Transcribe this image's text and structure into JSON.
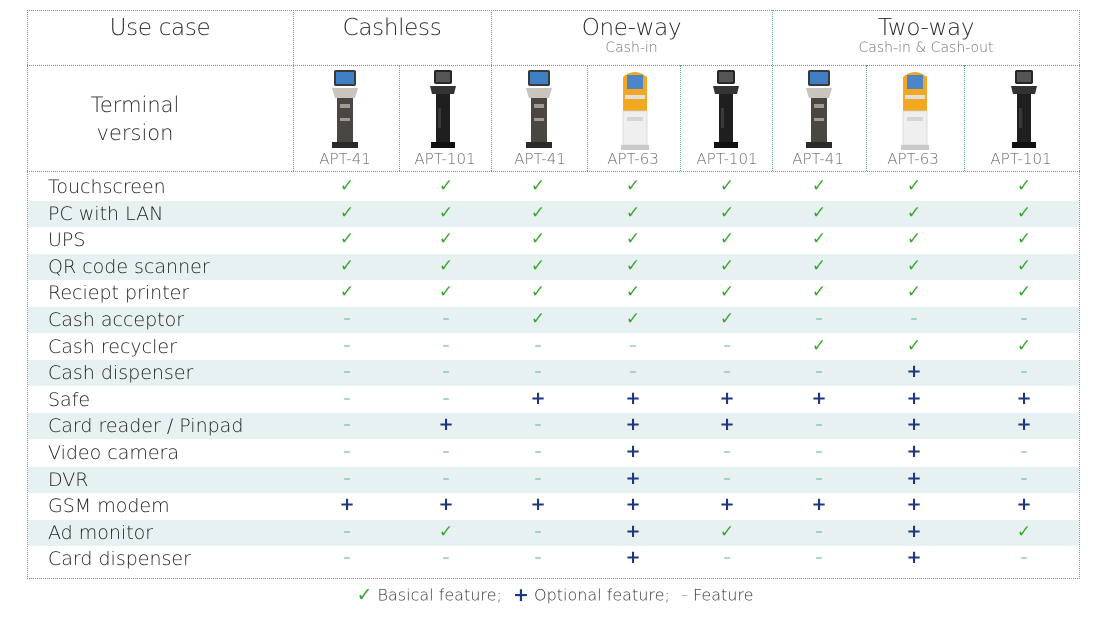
{
  "header": {
    "use_case_label": "Use case",
    "groups": [
      {
        "title": "Cashless",
        "subtitle": ""
      },
      {
        "title": "One-way",
        "subtitle": "Cash-in"
      },
      {
        "title": "Two-way",
        "subtitle": "Cash-in & Cash-out"
      }
    ],
    "terminal_label_line1": "Terminal",
    "terminal_label_line2": "version",
    "models": [
      "APT-41",
      "APT-101",
      "APT-41",
      "APT-63",
      "APT-101",
      "APT-41",
      "APT-63",
      "APT-101"
    ]
  },
  "symbols": {
    "basic": "✓",
    "optional": "+",
    "none": "–"
  },
  "features": [
    {
      "name": "Touchscreen",
      "values": [
        "basic",
        "basic",
        "basic",
        "basic",
        "basic",
        "basic",
        "basic",
        "basic"
      ]
    },
    {
      "name": "PC with LAN",
      "values": [
        "basic",
        "basic",
        "basic",
        "basic",
        "basic",
        "basic",
        "basic",
        "basic"
      ]
    },
    {
      "name": "UPS",
      "values": [
        "basic",
        "basic",
        "basic",
        "basic",
        "basic",
        "basic",
        "basic",
        "basic"
      ]
    },
    {
      "name": "QR code scanner",
      "values": [
        "basic",
        "basic",
        "basic",
        "basic",
        "basic",
        "basic",
        "basic",
        "basic"
      ]
    },
    {
      "name": "Reciept printer",
      "values": [
        "basic",
        "basic",
        "basic",
        "basic",
        "basic",
        "basic",
        "basic",
        "basic"
      ]
    },
    {
      "name": "Cash acceptor",
      "values": [
        "none",
        "none",
        "basic",
        "basic",
        "basic",
        "none",
        "none",
        "none"
      ]
    },
    {
      "name": "Cash recycler",
      "values": [
        "none",
        "none",
        "none",
        "none",
        "none",
        "basic",
        "basic",
        "basic"
      ]
    },
    {
      "name": "Cash dispenser",
      "values": [
        "none",
        "none",
        "none",
        "none",
        "none",
        "none",
        "optional",
        "none"
      ]
    },
    {
      "name": "Safe",
      "values": [
        "none",
        "none",
        "optional",
        "optional",
        "optional",
        "optional",
        "optional",
        "optional"
      ]
    },
    {
      "name": "Card reader / Pinpad",
      "values": [
        "none",
        "optional",
        "none",
        "optional",
        "optional",
        "none",
        "optional",
        "optional"
      ]
    },
    {
      "name": "Video camera",
      "values": [
        "none",
        "none",
        "none",
        "optional",
        "none",
        "none",
        "optional",
        "none"
      ]
    },
    {
      "name": "DVR",
      "values": [
        "none",
        "none",
        "none",
        "optional",
        "none",
        "none",
        "optional",
        "none"
      ]
    },
    {
      "name": "GSM modem",
      "values": [
        "optional",
        "optional",
        "optional",
        "optional",
        "optional",
        "optional",
        "optional",
        "optional"
      ]
    },
    {
      "name": "Ad monitor",
      "values": [
        "none",
        "basic",
        "none",
        "optional",
        "basic",
        "none",
        "optional",
        "basic"
      ]
    },
    {
      "name": "Card dispenser",
      "values": [
        "none",
        "none",
        "none",
        "optional",
        "none",
        "none",
        "optional",
        "none"
      ]
    }
  ],
  "legend": {
    "basic_symbol": "✓",
    "basic_label": "Basical feature;",
    "optional_symbol": "+",
    "optional_label": "Optional feature;",
    "none_symbol": "–",
    "none_label": "Feature"
  }
}
